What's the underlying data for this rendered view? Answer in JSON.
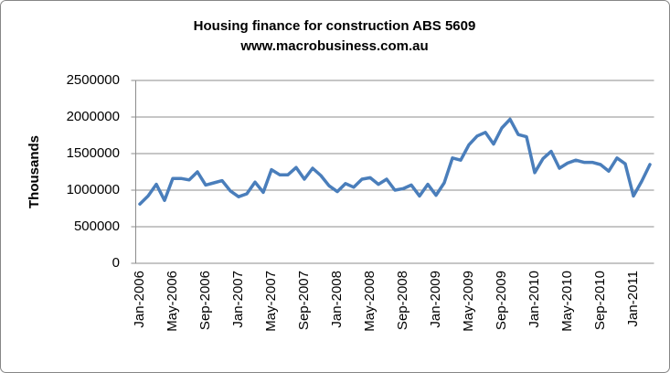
{
  "chart_data": {
    "type": "line",
    "title": "Housing finance for construction ABS 5609",
    "subtitle": "www.macrobusiness.com.au",
    "y_label": "Thousands",
    "categories": [
      "Jan-2006",
      null,
      null,
      null,
      "May-2006",
      null,
      null,
      null,
      "Sep-2006",
      null,
      null,
      null,
      "Jan-2007",
      null,
      null,
      null,
      "May-2007",
      null,
      null,
      null,
      "Sep-2007",
      null,
      null,
      null,
      "Jan-2008",
      null,
      null,
      null,
      "May-2008",
      null,
      null,
      null,
      "Sep-2008",
      null,
      null,
      null,
      "Jan-2009",
      null,
      null,
      null,
      "May-2009",
      null,
      null,
      null,
      "Sep-2009",
      null,
      null,
      null,
      "Jan-2010",
      null,
      null,
      null,
      "May-2010",
      null,
      null,
      null,
      "Sep-2010",
      null,
      null,
      null,
      "Jan-2011",
      null,
      null
    ],
    "series": [
      {
        "name": "Housing finance for construction",
        "color": "#4a7ebb",
        "values": [
          810000,
          920000,
          1080000,
          860000,
          1160000,
          1160000,
          1140000,
          1250000,
          1070000,
          1100000,
          1130000,
          990000,
          910000,
          950000,
          1110000,
          970000,
          1280000,
          1210000,
          1210000,
          1310000,
          1150000,
          1300000,
          1200000,
          1060000,
          980000,
          1090000,
          1040000,
          1150000,
          1170000,
          1080000,
          1150000,
          1000000,
          1020000,
          1070000,
          920000,
          1080000,
          930000,
          1100000,
          1440000,
          1410000,
          1620000,
          1740000,
          1790000,
          1630000,
          1850000,
          1970000,
          1760000,
          1730000,
          1240000,
          1430000,
          1530000,
          1300000,
          1370000,
          1410000,
          1380000,
          1380000,
          1350000,
          1260000,
          1440000,
          1360000,
          920000,
          1120000,
          1350000
        ]
      }
    ],
    "ylim": [
      0,
      2500000
    ],
    "yticks": [
      0,
      500000,
      1000000,
      1500000,
      2000000,
      2500000
    ],
    "grid": true
  }
}
